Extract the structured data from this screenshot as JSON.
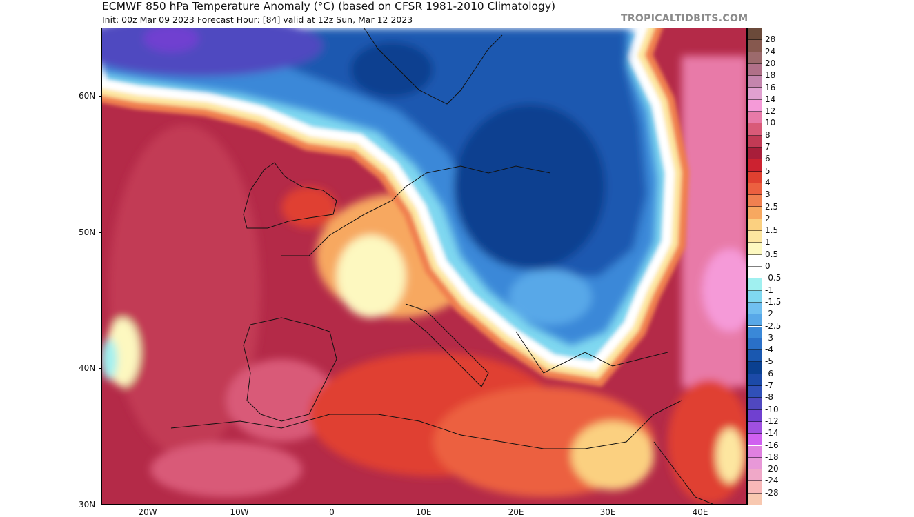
{
  "header": {
    "title": "ECMWF 850 hPa Temperature Anomaly (°C) (based on CFSR 1981-2010 Climatology)",
    "subtitle": "Init: 00z Mar 09 2023   Forecast Hour: [84]   valid at 12z Sun, Mar 12 2023",
    "watermark": "TROPICALTIDBITS.COM"
  },
  "map": {
    "lat_labels": [
      "60N",
      "50N",
      "40N",
      "30N"
    ],
    "lon_labels": [
      "20W",
      "10W",
      "0",
      "10E",
      "20E",
      "30E",
      "40E"
    ]
  },
  "colorbar": {
    "labels": [
      "28",
      "24",
      "20",
      "18",
      "16",
      "14",
      "12",
      "10",
      "8",
      "7",
      "6",
      "5",
      "4",
      "3",
      "2.5",
      "2",
      "1.5",
      "1",
      "0.5",
      "0",
      "-0.5",
      "-1",
      "-1.5",
      "-2",
      "-2.5",
      "-3",
      "-4",
      "-5",
      "-6",
      "-7",
      "-8",
      "-10",
      "-12",
      "-14",
      "-16",
      "-18",
      "-20",
      "-24",
      "-28"
    ],
    "colors": [
      "#6b4a3a",
      "#86584e",
      "#9c6a6c",
      "#b07088",
      "#c485ad",
      "#e0a0d0",
      "#f59ad8",
      "#e87aa8",
      "#d95a78",
      "#c23a55",
      "#a81e3a",
      "#cc2230",
      "#e04030",
      "#ec6040",
      "#f08050",
      "#f7a860",
      "#fbd080",
      "#fde6a0",
      "#fdf8c0",
      "#ffffff",
      "#ffffff",
      "#a0f0f0",
      "#80d8f0",
      "#70c0f0",
      "#58a8e8",
      "#3a88d8",
      "#2a70c8",
      "#1a58b0",
      "#0a4090",
      "#1c4aa8",
      "#3050b8",
      "#5048c0",
      "#7040d0",
      "#a050e0",
      "#d060f0",
      "#e080e0",
      "#e898d8",
      "#f0a8c8",
      "#f8b8b8",
      "#f8c8b0"
    ]
  }
}
